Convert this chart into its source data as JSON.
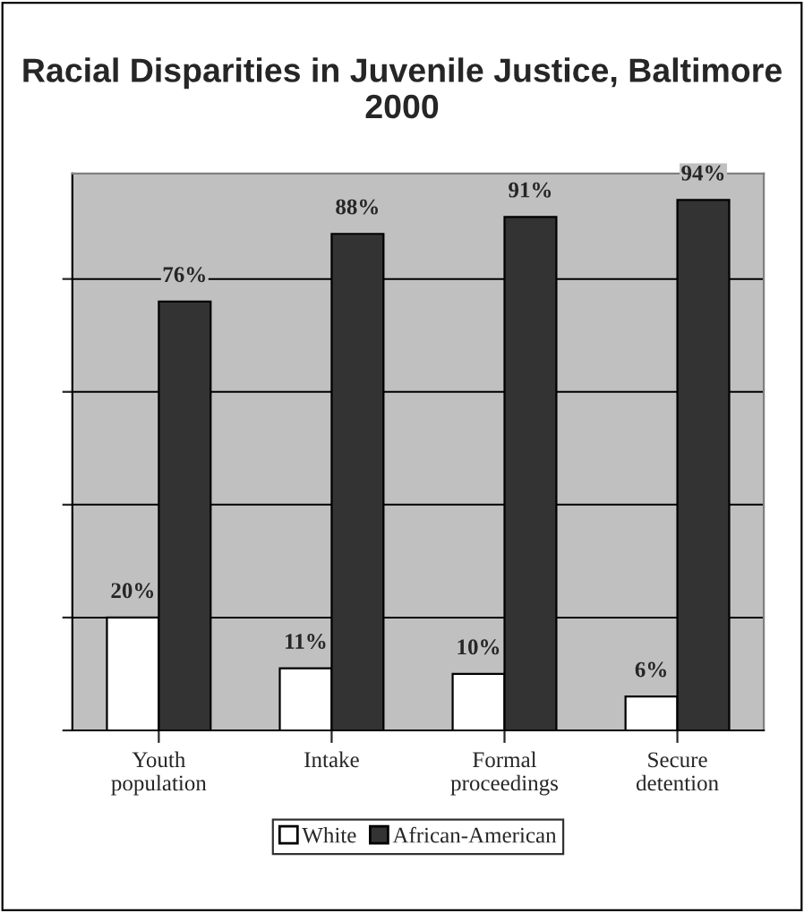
{
  "chart_data": {
    "type": "bar",
    "title": "Racial Disparities in Juvenile Justice, Baltimore 2000",
    "categories": [
      "Youth\npopulation",
      "Intake",
      "Formal\nproceedings",
      "Secure\ndetention"
    ],
    "series": [
      {
        "name": "White",
        "color": "#ffffff",
        "values": [
          20,
          11,
          10,
          6
        ],
        "value_labels": [
          "20%",
          "11%",
          "10%",
          "6%"
        ]
      },
      {
        "name": "African-American",
        "color": "#333333",
        "values": [
          76,
          88,
          91,
          94
        ],
        "value_labels": [
          "76%",
          "88%",
          "91%",
          "94%"
        ]
      }
    ],
    "grid": "y",
    "legend": "bottom",
    "tick_labels": "x"
  }
}
